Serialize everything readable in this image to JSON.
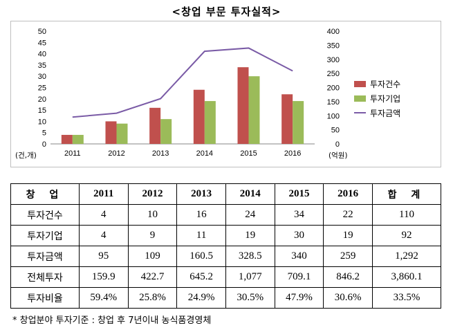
{
  "title": "<창업 부문 투자실적>",
  "chart_data": {
    "type": "bar",
    "categories": [
      "2011",
      "2012",
      "2013",
      "2014",
      "2015",
      "2016"
    ],
    "series": [
      {
        "name": "투자건수",
        "kind": "bar",
        "axis": "left",
        "color": "#c0504d",
        "values": [
          4,
          10,
          16,
          24,
          34,
          22
        ]
      },
      {
        "name": "투자기업",
        "kind": "bar",
        "axis": "left",
        "color": "#9bbb59",
        "values": [
          4,
          9,
          11,
          19,
          30,
          19
        ]
      },
      {
        "name": "투자금액",
        "kind": "line",
        "axis": "right",
        "color": "#7a5ba6",
        "values": [
          95,
          109,
          160.5,
          328.5,
          340,
          259
        ]
      }
    ],
    "y_left": {
      "range": [
        0,
        50
      ],
      "ticks": [
        "0",
        "5",
        "10",
        "15",
        "20",
        "25",
        "30",
        "35",
        "40",
        "45",
        "50"
      ],
      "unit_label": "(건,개)"
    },
    "y_right": {
      "range": [
        0,
        400
      ],
      "ticks": [
        "0",
        "50",
        "100",
        "150",
        "200",
        "250",
        "300",
        "350",
        "400"
      ],
      "unit_label": "(억원)"
    },
    "grid": false,
    "legend_position": "right"
  },
  "table": {
    "header": [
      "창 업",
      "2011",
      "2012",
      "2013",
      "2014",
      "2015",
      "2016",
      "합 계"
    ],
    "rows": [
      [
        "투자건수",
        "4",
        "10",
        "16",
        "24",
        "34",
        "22",
        "110"
      ],
      [
        "투자기업",
        "4",
        "9",
        "11",
        "19",
        "30",
        "19",
        "92"
      ],
      [
        "투자금액",
        "95",
        "109",
        "160.5",
        "328.5",
        "340",
        "259",
        "1,292"
      ],
      [
        "전체투자",
        "159.9",
        "422.7",
        "645.2",
        "1,077",
        "709.1",
        "846.2",
        "3,860.1"
      ],
      [
        "투자비율",
        "59.4%",
        "25.8%",
        "24.9%",
        "30.5%",
        "47.9%",
        "30.6%",
        "33.5%"
      ]
    ]
  },
  "footnote": "* 창업분야 투자기준 : 창업 후 7년이내 농식품경영체"
}
